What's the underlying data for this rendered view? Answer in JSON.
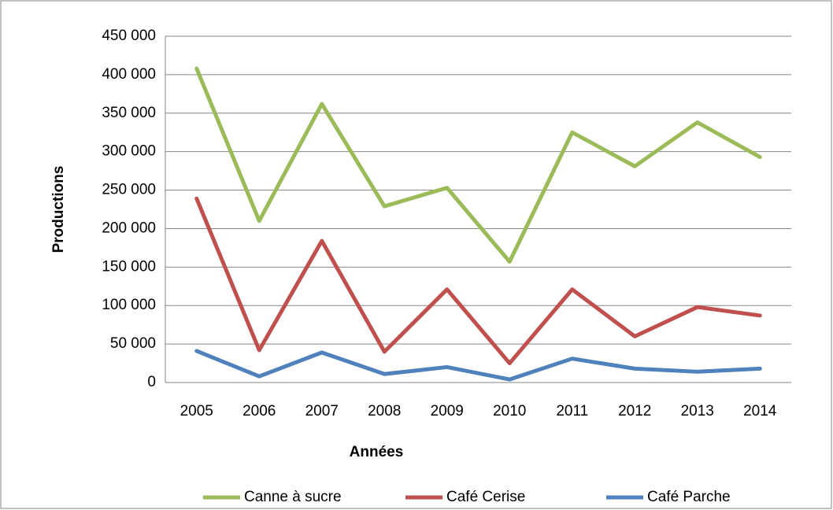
{
  "chart_data": {
    "type": "line",
    "x_label": "Années",
    "y_label": "Productions",
    "categories": [
      "2005",
      "2006",
      "2007",
      "2008",
      "2009",
      "2010",
      "2011",
      "2012",
      "2013",
      "2014"
    ],
    "series": [
      {
        "name": "Canne à sucre",
        "color": "#9bbb59",
        "values": [
          408000,
          210000,
          362000,
          229000,
          253000,
          157000,
          325000,
          281000,
          338000,
          293000
        ]
      },
      {
        "name": "Café Cerise",
        "color": "#c0504d",
        "values": [
          239000,
          42000,
          184000,
          40000,
          121000,
          25000,
          121000,
          60000,
          98000,
          87000
        ]
      },
      {
        "name": "Café Parche",
        "color": "#4f81bd",
        "values": [
          41000,
          8000,
          39000,
          11000,
          20000,
          4000,
          31000,
          18000,
          14000,
          18000
        ]
      }
    ],
    "ylim": [
      0,
      450000
    ],
    "yticks": [
      0,
      {
        "value": 50000,
        "label": "50 000"
      },
      {
        "value": 100000,
        "label": "100 000"
      },
      {
        "value": 150000,
        "label": "150 000"
      },
      {
        "value": 200000,
        "label": "200 000"
      },
      {
        "value": 250000,
        "label": "250 000"
      },
      {
        "value": 300000,
        "label": "300 000"
      },
      {
        "value": 350000,
        "label": "350 000"
      },
      {
        "value": 400000,
        "label": "400 000"
      },
      {
        "value": 450000,
        "label": "450 000"
      }
    ],
    "grid": true,
    "legend": "bottom"
  }
}
